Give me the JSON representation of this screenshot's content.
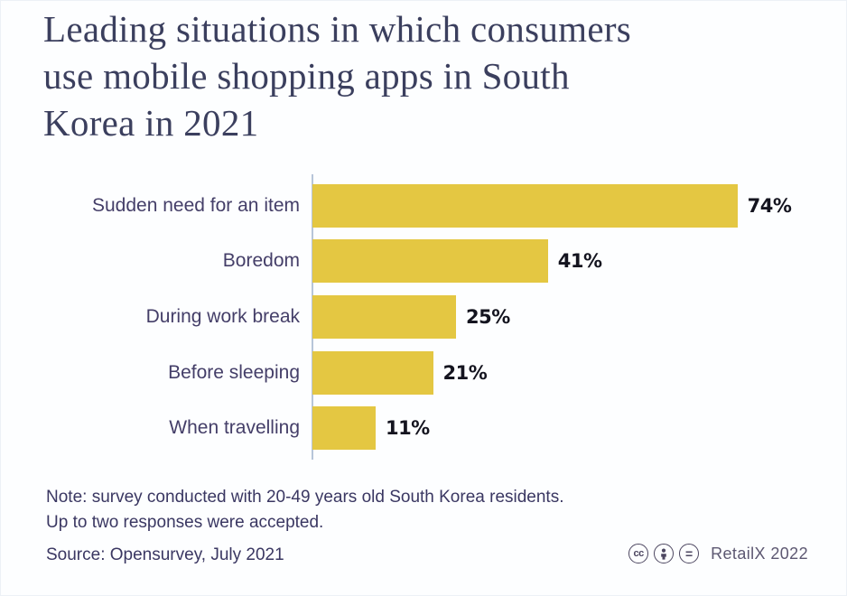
{
  "title": {
    "full": "Leading situations in which consumers use mobile shopping apps in South Korea in 2021",
    "lines": [
      "Leading situations in which consumers",
      "use mobile shopping apps in South",
      "Korea in 2021"
    ]
  },
  "chart_data": {
    "type": "bar",
    "orientation": "horizontal",
    "title": "Leading situations in which consumers use mobile shopping apps in South Korea in 2021",
    "categories": [
      "Sudden need for an item",
      "Boredom",
      "During work break",
      "Before sleeping",
      "When travelling"
    ],
    "values": [
      74,
      41,
      25,
      21,
      11
    ],
    "value_labels": [
      "74%",
      "41%",
      "25%",
      "21%",
      "11%"
    ],
    "unit": "%",
    "xlim": [
      0,
      100
    ],
    "grid": false,
    "legend": false,
    "bar_color": "#e4c742",
    "axis_line_color": "#b7c5d9",
    "label_color": "#443e68",
    "value_label_color": "#14141f"
  },
  "footer": {
    "note_line1": "Note: survey conducted with 20-49 years old South Korea residents.",
    "note_line2": "Up to two responses were accepted.",
    "source": "Source: Opensurvey, July 2021",
    "license": {
      "cc_label": "cc",
      "nd_label": "=",
      "icons": [
        "cc-icon",
        "attribution-person-icon",
        "equal-sign-icon"
      ]
    },
    "brand": "RetailX 2022"
  },
  "colors": {
    "background": "#fdfeff",
    "title_text": "#3b3f5e",
    "note_text": "#3a3762",
    "brand_text": "#5d5872"
  }
}
